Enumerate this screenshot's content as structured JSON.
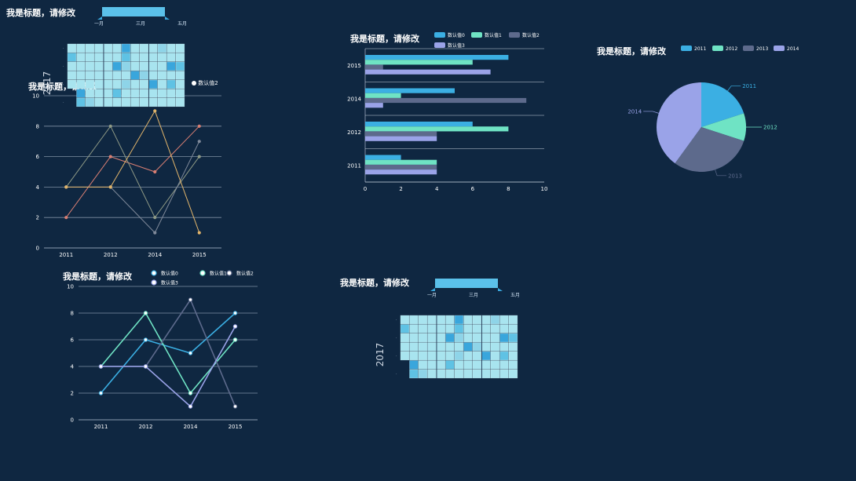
{
  "colors": {
    "background": "#0f2741",
    "series": [
      "#3bafe3",
      "#6fe3c4",
      "#5d6a8c",
      "#9aa3e8"
    ],
    "line_plain": [
      "#d97f73",
      "#8f9a86",
      "#808a9a",
      "#e2b56b"
    ],
    "heat": [
      "#a8e4ef",
      "#8ed4e8",
      "#5fc2e4",
      "#39a6dc"
    ]
  },
  "heatmap_title": "我是标题，请修改",
  "heatmap_year": "2017",
  "heatmap_months": [
    "一月",
    "三月",
    "五月"
  ],
  "line1": {
    "title": "我是标题，请修改",
    "legend_overlap": "数认值2",
    "chart_data": {
      "type": "line",
      "categories": [
        "2011",
        "2012",
        "2014",
        "2015"
      ],
      "ylim": [
        0,
        10
      ],
      "yticks": [
        0,
        2,
        4,
        6,
        8,
        10
      ],
      "series": [
        {
          "values": [
            2,
            6,
            5,
            8
          ]
        },
        {
          "values": [
            4,
            8,
            2,
            6
          ]
        },
        {
          "values": [
            4,
            4,
            1,
            7
          ]
        },
        {
          "values": [
            4,
            4,
            9,
            1
          ]
        }
      ]
    }
  },
  "bar": {
    "title": "我是标题，请修改",
    "chart_data": {
      "type": "bar",
      "orientation": "horizontal",
      "categories": [
        "2011",
        "2012",
        "2014",
        "2015"
      ],
      "xlim": [
        0,
        10
      ],
      "xticks": [
        0,
        2,
        4,
        6,
        8,
        10
      ],
      "series": [
        {
          "name": "数认值0",
          "values": [
            2,
            6,
            5,
            8
          ]
        },
        {
          "name": "数认值1",
          "values": [
            4,
            8,
            2,
            6
          ]
        },
        {
          "name": "数认值2",
          "values": [
            4,
            4,
            9,
            1
          ]
        },
        {
          "name": "数认值3",
          "values": [
            4,
            4,
            1,
            7
          ]
        }
      ]
    }
  },
  "pie": {
    "title": "我是标题，请修改",
    "chart_data": {
      "type": "pie",
      "labels": [
        "2011",
        "2012",
        "2013",
        "2014"
      ],
      "values": [
        20,
        10,
        30,
        40
      ]
    }
  },
  "line2": {
    "title": "我是标题，请修改",
    "chart_data": {
      "type": "line",
      "categories": [
        "2011",
        "2012",
        "2014",
        "2015"
      ],
      "ylim": [
        0,
        10
      ],
      "yticks": [
        0,
        2,
        4,
        6,
        8,
        10
      ],
      "series": [
        {
          "name": "数认值0",
          "values": [
            2,
            6,
            5,
            8
          ]
        },
        {
          "name": "数认值1",
          "values": [
            4,
            8,
            2,
            6
          ]
        },
        {
          "name": "数认值2",
          "values": [
            4,
            4,
            9,
            1
          ]
        },
        {
          "name": "数认值3",
          "values": [
            4,
            4,
            1,
            7
          ]
        }
      ]
    }
  },
  "heatmap2": {
    "title": "我是标题，请修改",
    "year": "2017",
    "months": [
      "一月",
      "三月",
      "五月"
    ]
  }
}
